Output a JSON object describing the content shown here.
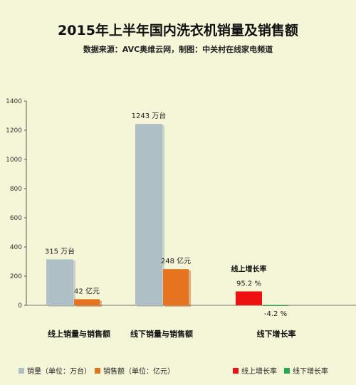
{
  "chart_data": {
    "type": "bar",
    "title": "2015年上半年国内洗衣机销量及销售额",
    "subtitle": "数据来源：AVC奥维云网，制图：中关村在线家电频道",
    "ylim": [
      -50,
      1400
    ],
    "yticks": [
      0,
      200,
      400,
      600,
      800,
      1000,
      1200,
      1400
    ],
    "groups": [
      {
        "category": "线上销量与销售额",
        "bars": [
          {
            "series": "销量（单位：万台）",
            "value": 315,
            "label": "315 万台",
            "color": "#aebfc6"
          },
          {
            "series": "销售额（单位：亿元）",
            "value": 42,
            "label": "42 亿元",
            "color": "#e57320"
          }
        ]
      },
      {
        "category": "线下销量与销售额",
        "bars": [
          {
            "series": "销量（单位：万台）",
            "value": 1243,
            "label": "1243 万台",
            "color": "#aebfc6"
          },
          {
            "series": "销售额（单位：亿元）",
            "value": 248,
            "label": "248 亿元",
            "color": "#e57320"
          }
        ]
      },
      {
        "category": "线下增长率",
        "bars": [
          {
            "series": "线上增长率",
            "value": 95.2,
            "label": "95.2 %",
            "header": "线上增长率",
            "color": "#ee1111"
          },
          {
            "series": "线下增长率",
            "value": -4.2,
            "label": "-4.2 %",
            "color": "#22aa55"
          }
        ]
      }
    ],
    "legend": [
      {
        "name": "销量（单位：万台）",
        "color": "#aebfc6"
      },
      {
        "name": "销售额（单位：亿元）",
        "color": "#e57320"
      },
      {
        "name": "线上增长率",
        "color": "#ee1111"
      },
      {
        "name": "线下增长率",
        "color": "#22aa55"
      }
    ]
  }
}
